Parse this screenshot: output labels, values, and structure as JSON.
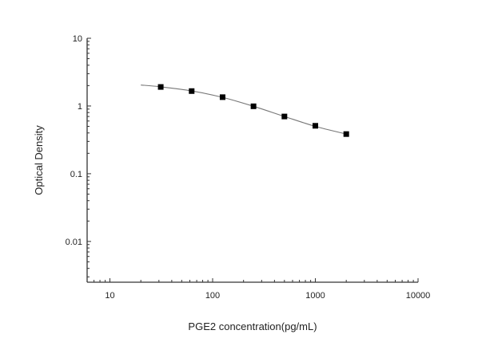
{
  "chart_data": {
    "type": "scatter",
    "title": "",
    "xlabel": "PGE2 concentration(pg/mL)",
    "ylabel": "Optical Density",
    "xscale": "log",
    "yscale": "log",
    "xlim": [
      6,
      10000
    ],
    "ylim": [
      0.0025,
      10
    ],
    "xticks": [
      10,
      100,
      1000,
      10000
    ],
    "xtick_labels": [
      "10",
      "100",
      "1000",
      "10000"
    ],
    "yticks": [
      0.01,
      0.1,
      1,
      10
    ],
    "ytick_labels": [
      "0.01",
      "0.1",
      "1",
      "10"
    ],
    "grid": false,
    "legend": "none",
    "series": [
      {
        "kind": "points",
        "marker": "square",
        "color": "#000000",
        "x": [
          31.25,
          62.5,
          125,
          250,
          500,
          1000,
          2000
        ],
        "y": [
          1.91,
          1.66,
          1.35,
          0.99,
          0.7,
          0.51,
          0.385
        ]
      },
      {
        "kind": "fit-curve",
        "color": "#777777",
        "x": [
          20,
          31.25,
          62.5,
          125,
          250,
          500,
          1000,
          2000
        ],
        "y": [
          2.04,
          1.92,
          1.67,
          1.34,
          0.99,
          0.7,
          0.5,
          0.385
        ]
      }
    ]
  }
}
